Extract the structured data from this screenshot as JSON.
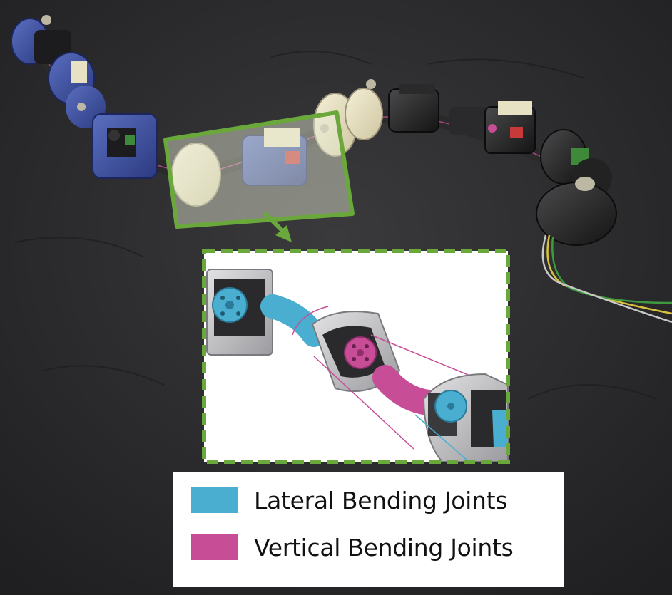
{
  "legend": {
    "items": [
      {
        "label": "Lateral Bending Joints",
        "color": "#4aaed0"
      },
      {
        "label": "Vertical Bending Joints",
        "color": "#c84d97"
      }
    ]
  },
  "colors": {
    "background": "#2b2b2d",
    "highlight_frame": "#6aa83c",
    "blue_module": "#3a4fa0",
    "cream_module": "#e8e2c4",
    "black_module": "#1e1e1e"
  },
  "icons": [
    "zoom-arrow-icon"
  ]
}
